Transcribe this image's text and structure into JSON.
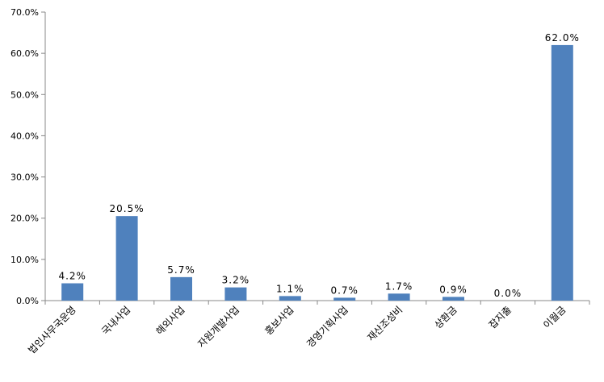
{
  "chart_data": {
    "type": "bar",
    "categories": [
      "법인사무국운영",
      "국내사업",
      "해외사업",
      "자원개발사업",
      "홍보사업",
      "경영기획사업",
      "재산조성비",
      "상환금",
      "잡지출",
      "이월금"
    ],
    "values": [
      4.2,
      20.5,
      5.7,
      3.2,
      1.1,
      0.7,
      1.7,
      0.9,
      0.0,
      62.0
    ],
    "value_labels": [
      "4.2%",
      "20.5%",
      "5.7%",
      "3.2%",
      "1.1%",
      "0.7%",
      "1.7%",
      "0.9%",
      "0.0%",
      "62.0%"
    ],
    "color": "#4f81bd",
    "ylim": [
      0,
      70
    ],
    "yticks": [
      {
        "value": 0,
        "label": "0.0%"
      },
      {
        "value": 10,
        "label": "10.0%"
      },
      {
        "value": 20,
        "label": "20.0%"
      },
      {
        "value": 30,
        "label": "30.0%"
      },
      {
        "value": 40,
        "label": "40.0%"
      },
      {
        "value": 50,
        "label": "50.0%"
      },
      {
        "value": 60,
        "label": "60.0%"
      },
      {
        "value": 70,
        "label": "70.0%"
      }
    ],
    "grid": false
  }
}
